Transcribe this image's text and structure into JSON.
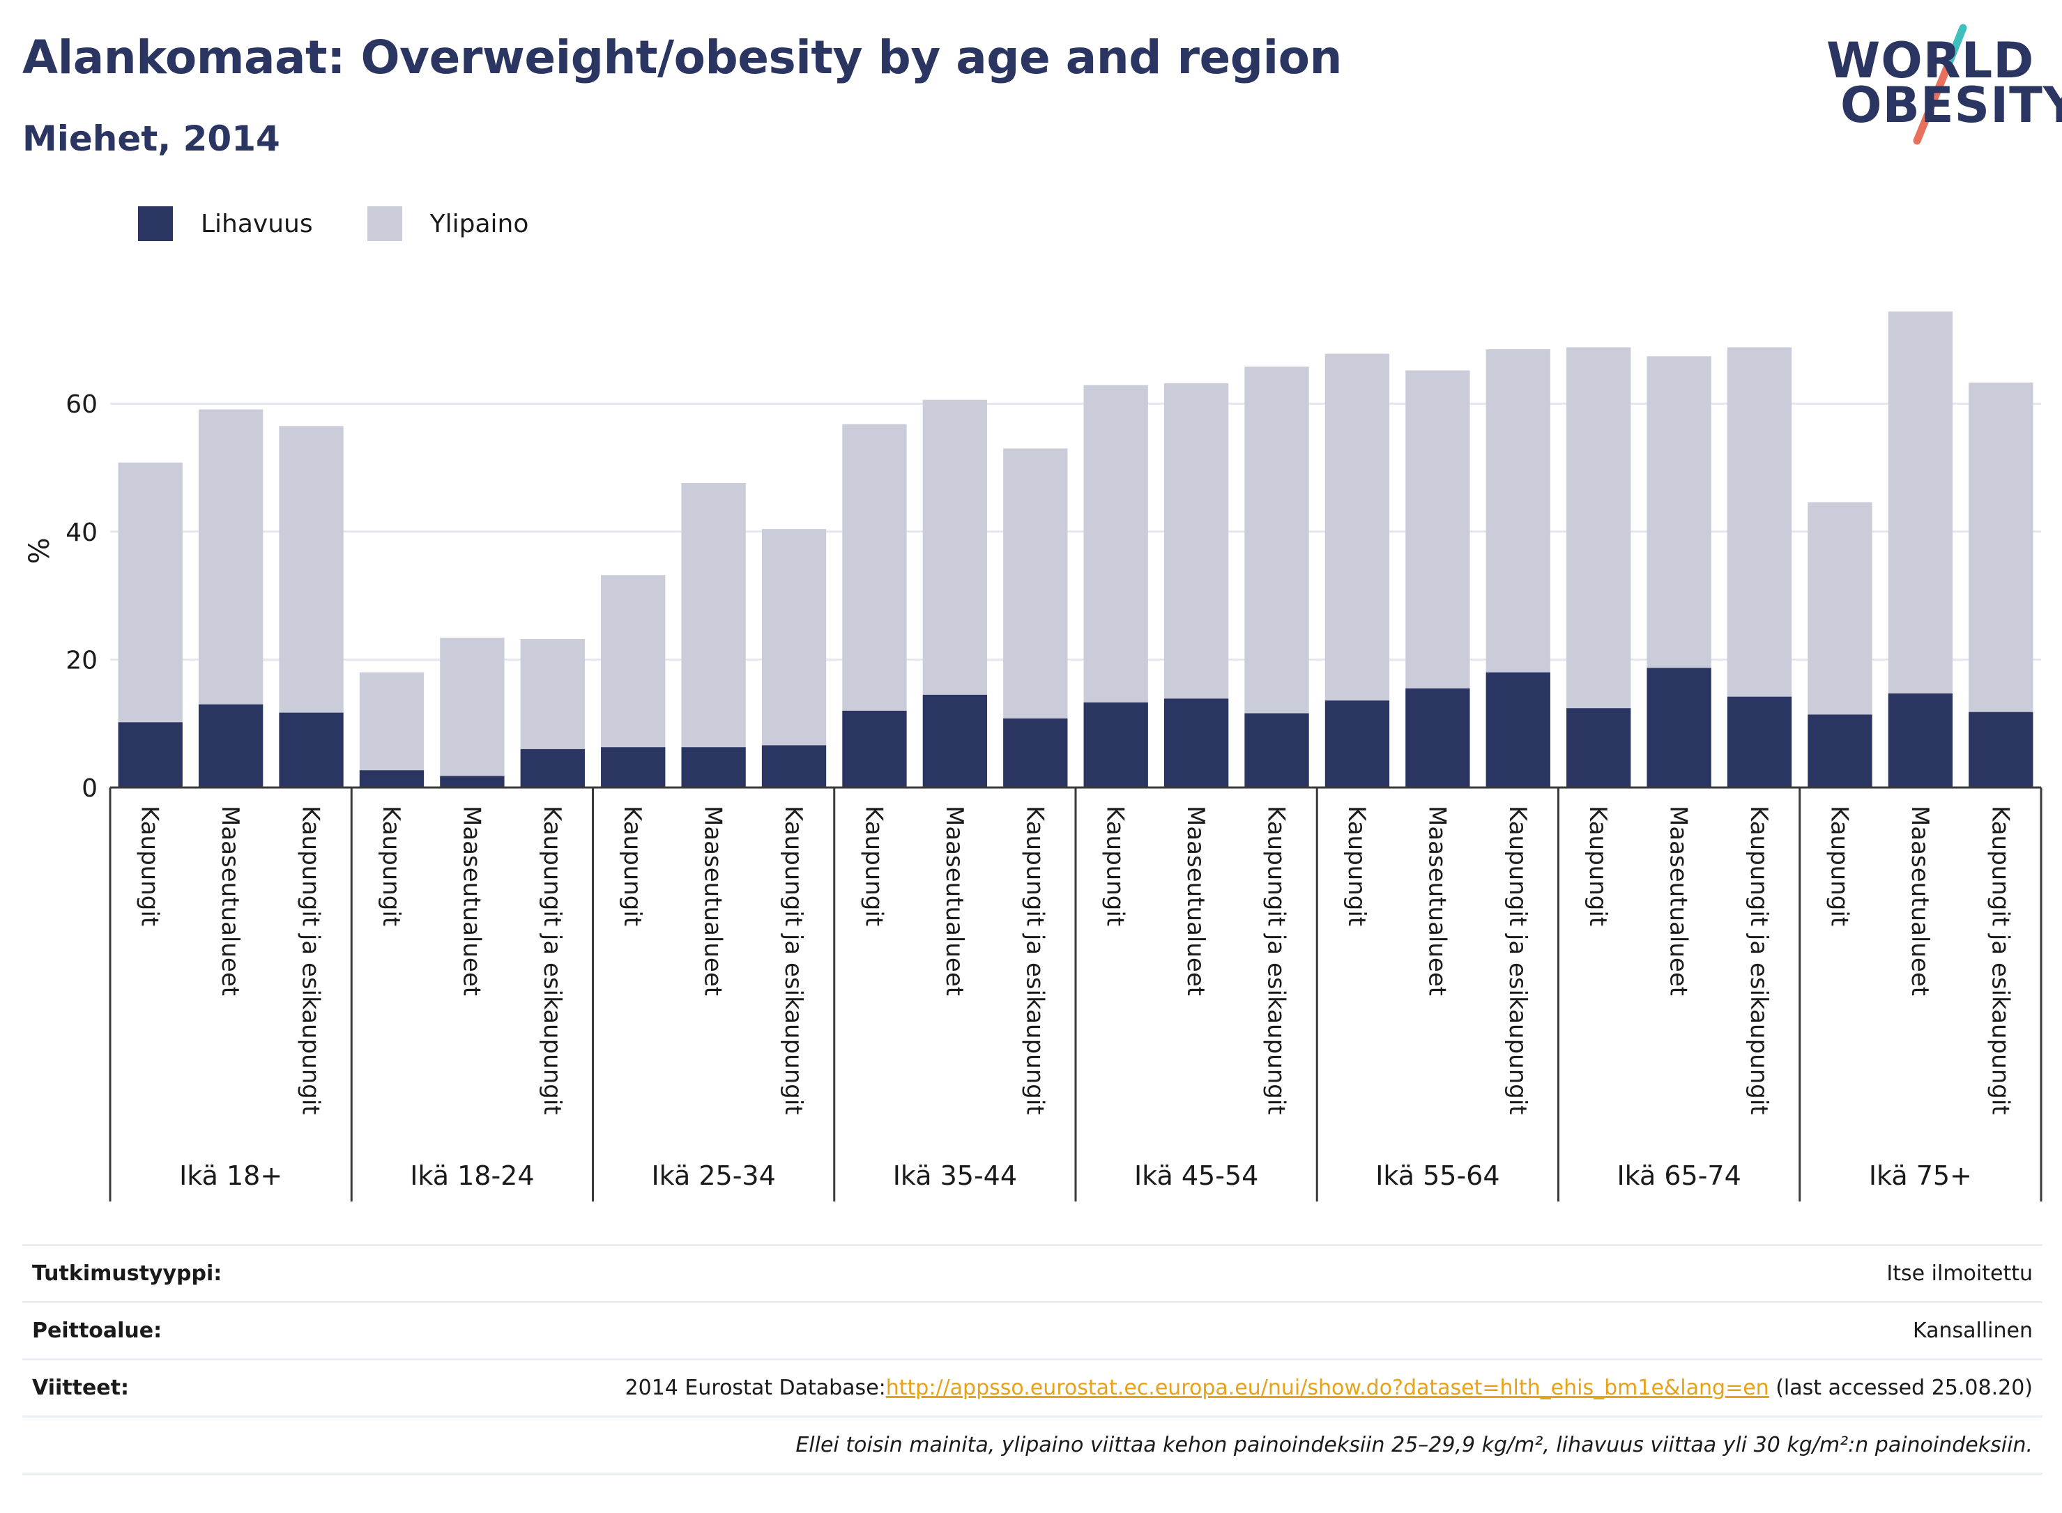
{
  "title": "Alankomaat: Overweight/obesity by age and region",
  "subtitle": "Miehet, 2014",
  "logo": {
    "line1": "WORLD",
    "line2": "OBESITY"
  },
  "legend": [
    {
      "label": "Lihavuus",
      "color": "#2a3561"
    },
    {
      "label": "Ylipaino",
      "color": "#cacdd9"
    }
  ],
  "colors": {
    "obesity": "#2a3561",
    "overweight": "#cacdd9",
    "grid": "#e6e7ee",
    "axis": "#3a3a3a",
    "link": "#e7a21a"
  },
  "chart_data": {
    "type": "bar",
    "stacked": true,
    "ylabel": "%",
    "ylim": [
      0,
      76
    ],
    "yticks": [
      0,
      20,
      40,
      60
    ],
    "grid": true,
    "legend_position": "top-left",
    "groups": [
      {
        "label": "Ikä 18+",
        "categories": [
          "Kaupungit",
          "Maaseutualueet",
          "Kaupungit ja esikaupungit"
        ],
        "obesity": [
          10.2,
          13.0,
          11.7
        ],
        "total": [
          50.8,
          59.1,
          56.5
        ]
      },
      {
        "label": "Ikä 18-24",
        "categories": [
          "Kaupungit",
          "Maaseutualueet",
          "Kaupungit ja esikaupungit"
        ],
        "obesity": [
          2.7,
          1.8,
          6.0
        ],
        "total": [
          18.0,
          23.4,
          23.2
        ]
      },
      {
        "label": "Ikä 25-34",
        "categories": [
          "Kaupungit",
          "Maaseutualueet",
          "Kaupungit ja esikaupungit"
        ],
        "obesity": [
          6.3,
          6.3,
          6.6
        ],
        "total": [
          33.2,
          47.6,
          40.4
        ]
      },
      {
        "label": "Ikä 35-44",
        "categories": [
          "Kaupungit",
          "Maaseutualueet",
          "Kaupungit ja esikaupungit"
        ],
        "obesity": [
          12.0,
          14.5,
          10.8
        ],
        "total": [
          56.8,
          60.6,
          53.0
        ]
      },
      {
        "label": "Ikä 45-54",
        "categories": [
          "Kaupungit",
          "Maaseutualueet",
          "Kaupungit ja esikaupungit"
        ],
        "obesity": [
          13.3,
          13.9,
          11.6
        ],
        "total": [
          62.9,
          63.2,
          65.8
        ]
      },
      {
        "label": "Ikä 55-64",
        "categories": [
          "Kaupungit",
          "Maaseutualueet",
          "Kaupungit ja esikaupungit"
        ],
        "obesity": [
          13.6,
          15.5,
          18.0
        ],
        "total": [
          67.8,
          65.2,
          68.5
        ]
      },
      {
        "label": "Ikä 65-74",
        "categories": [
          "Kaupungit",
          "Maaseutualueet",
          "Kaupungit ja esikaupungit"
        ],
        "obesity": [
          12.4,
          18.7,
          14.2
        ],
        "total": [
          68.8,
          67.4,
          68.8
        ]
      },
      {
        "label": "Ikä 75+",
        "categories": [
          "Kaupungit",
          "Maaseutualueet",
          "Kaupungit ja esikaupungit"
        ],
        "obesity": [
          11.4,
          14.7,
          11.8
        ],
        "total": [
          44.6,
          74.4,
          63.3
        ]
      }
    ]
  },
  "info": {
    "survey_label": "Tutkimustyyppi:",
    "survey_value": "Itse ilmoitettu",
    "coverage_label": "Peittoalue:",
    "coverage_value": "Kansallinen",
    "refs_label": "Viitteet:",
    "refs_prefix": "2014 Eurostat Database:",
    "refs_link": "http://appsso.eurostat.ec.europa.eu/nui/show.do?dataset=hlth_ehis_bm1e&lang=en",
    "refs_suffix": " (last accessed 25.08.20)",
    "note": "Ellei toisin mainita, ylipaino viittaa kehon painoindeksiin 25–29,9 kg/m², lihavuus viittaa yli 30 kg/m²:n painoindeksiin."
  }
}
